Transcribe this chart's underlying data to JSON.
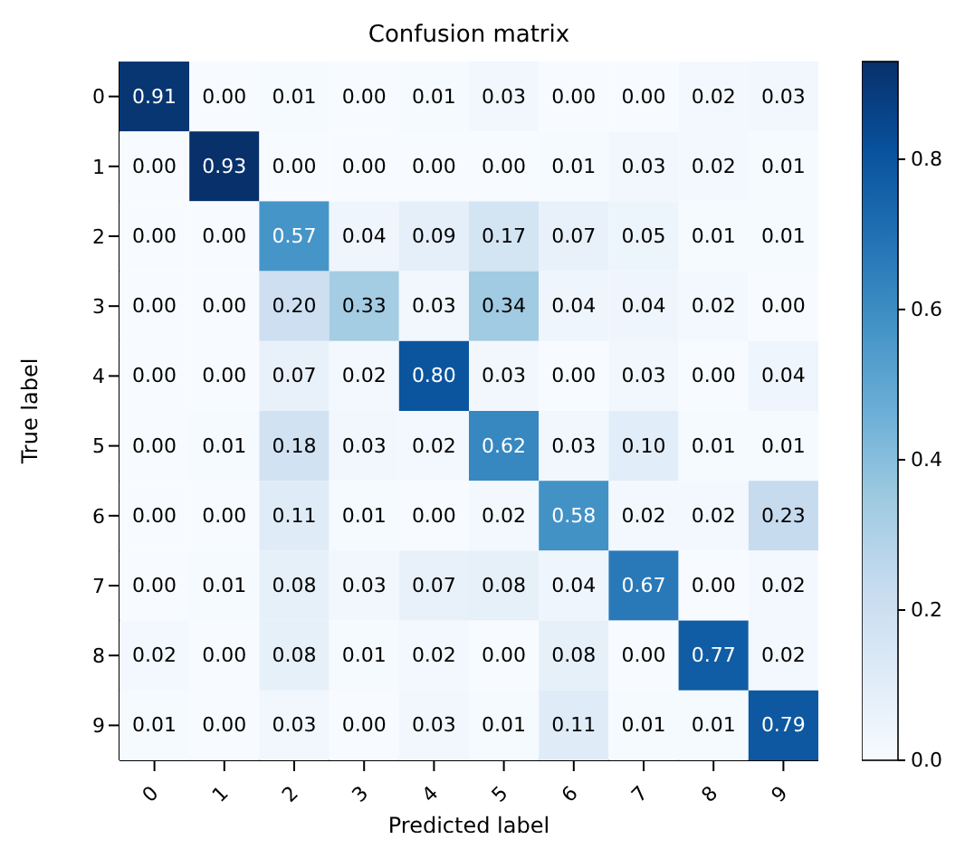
{
  "chart_data": {
    "type": "heatmap",
    "title": "Confusion matrix",
    "xlabel": "Predicted label",
    "ylabel": "True label",
    "categories": [
      "0",
      "1",
      "2",
      "3",
      "4",
      "5",
      "6",
      "7",
      "8",
      "9"
    ],
    "y_categories": [
      "0",
      "1",
      "2",
      "3",
      "4",
      "5",
      "6",
      "7",
      "8",
      "9"
    ],
    "cells": [
      [
        0.91,
        0.0,
        0.01,
        0.0,
        0.01,
        0.03,
        0.0,
        0.0,
        0.02,
        0.03
      ],
      [
        0.0,
        0.93,
        0.0,
        0.0,
        0.0,
        0.0,
        0.01,
        0.03,
        0.02,
        0.01
      ],
      [
        0.0,
        0.0,
        0.57,
        0.04,
        0.09,
        0.17,
        0.07,
        0.05,
        0.01,
        0.01
      ],
      [
        0.0,
        0.0,
        0.2,
        0.33,
        0.03,
        0.34,
        0.04,
        0.04,
        0.02,
        0.0
      ],
      [
        0.0,
        0.0,
        0.07,
        0.02,
        0.8,
        0.03,
        0.0,
        0.03,
        0.0,
        0.04
      ],
      [
        0.0,
        0.01,
        0.18,
        0.03,
        0.02,
        0.62,
        0.03,
        0.1,
        0.01,
        0.01
      ],
      [
        0.0,
        0.0,
        0.11,
        0.01,
        0.0,
        0.02,
        0.58,
        0.02,
        0.02,
        0.23
      ],
      [
        0.0,
        0.01,
        0.08,
        0.03,
        0.07,
        0.08,
        0.04,
        0.67,
        0.0,
        0.02
      ],
      [
        0.02,
        0.0,
        0.08,
        0.01,
        0.02,
        0.0,
        0.08,
        0.0,
        0.77,
        0.02
      ],
      [
        0.01,
        0.0,
        0.03,
        0.0,
        0.03,
        0.01,
        0.11,
        0.01,
        0.01,
        0.79
      ]
    ],
    "cell_labels": [
      [
        "0.91",
        "0.00",
        "0.01",
        "0.00",
        "0.01",
        "0.03",
        "0.00",
        "0.00",
        "0.02",
        "0.03"
      ],
      [
        "0.00",
        "0.93",
        "0.00",
        "0.00",
        "0.00",
        "0.00",
        "0.01",
        "0.03",
        "0.02",
        "0.01"
      ],
      [
        "0.00",
        "0.00",
        "0.57",
        "0.04",
        "0.09",
        "0.17",
        "0.07",
        "0.05",
        "0.01",
        "0.01"
      ],
      [
        "0.00",
        "0.00",
        "0.20",
        "0.33",
        "0.03",
        "0.34",
        "0.04",
        "0.04",
        "0.02",
        "0.00"
      ],
      [
        "0.00",
        "0.00",
        "0.07",
        "0.02",
        "0.80",
        "0.03",
        "0.00",
        "0.03",
        "0.00",
        "0.04"
      ],
      [
        "0.00",
        "0.01",
        "0.18",
        "0.03",
        "0.02",
        "0.62",
        "0.03",
        "0.10",
        "0.01",
        "0.01"
      ],
      [
        "0.00",
        "0.00",
        "0.11",
        "0.01",
        "0.00",
        "0.02",
        "0.58",
        "0.02",
        "0.02",
        "0.23"
      ],
      [
        "0.00",
        "0.01",
        "0.08",
        "0.03",
        "0.07",
        "0.08",
        "0.04",
        "0.67",
        "0.00",
        "0.02"
      ],
      [
        "0.02",
        "0.00",
        "0.08",
        "0.01",
        "0.02",
        "0.00",
        "0.08",
        "0.00",
        "0.77",
        "0.02"
      ],
      [
        "0.01",
        "0.00",
        "0.03",
        "0.00",
        "0.03",
        "0.01",
        "0.11",
        "0.01",
        "0.01",
        "0.79"
      ]
    ],
    "clim": [
      0,
      0.93
    ],
    "cticks": [
      {
        "value": 0,
        "label": "0.0"
      },
      {
        "value": 0.2,
        "label": "0.2"
      },
      {
        "value": 0.4,
        "label": "0.4"
      },
      {
        "value": 0.6,
        "label": "0.6"
      },
      {
        "value": 0.8,
        "label": "0.8"
      }
    ]
  }
}
